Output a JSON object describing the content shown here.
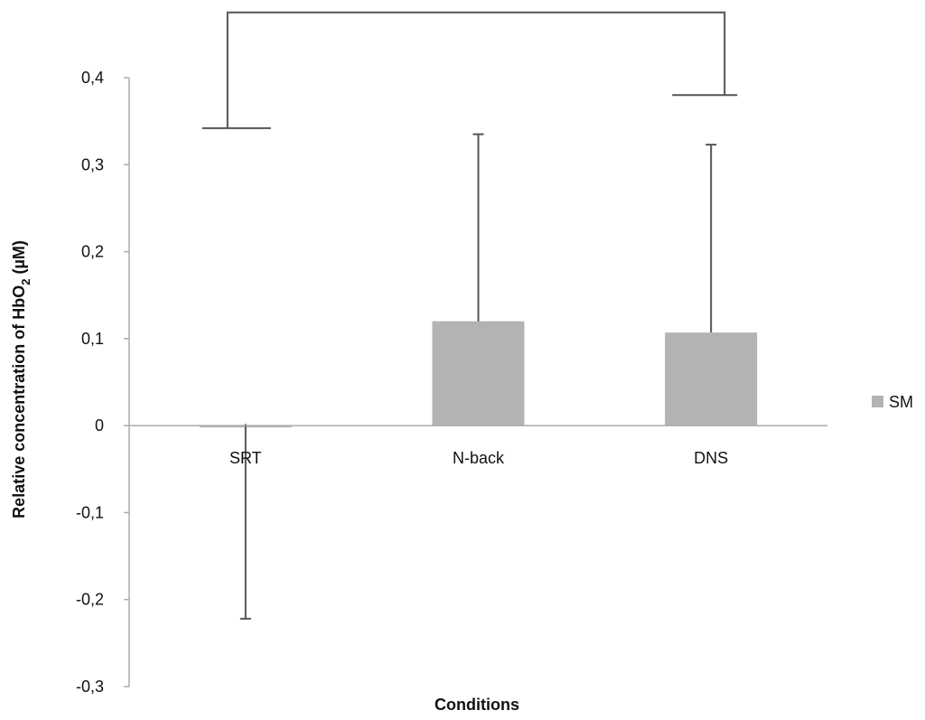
{
  "chart_data": {
    "type": "bar",
    "title": "",
    "xlabel": "Conditions",
    "ylabel": "Relative concentration of HbO₂ (µM)",
    "ylabel_parts": {
      "before": "Relative concentration of HbO",
      "sub": "2",
      "after": " (µM)"
    },
    "categories": [
      "SRT",
      "N-back",
      "DNS"
    ],
    "series": [
      {
        "name": "SM",
        "color": "#b3b3b3",
        "values": [
          -0.002,
          0.12,
          0.107
        ],
        "error_upper": [
          0.002,
          0.335,
          0.323
        ],
        "error_lower": [
          -0.222,
          0.12,
          0.107
        ]
      }
    ],
    "ylim": [
      -0.3,
      0.4
    ],
    "yticks": [
      0.4,
      0.3,
      0.2,
      0.1,
      0,
      -0.1,
      -0.2,
      -0.3
    ],
    "ytick_labels": [
      "0,4",
      "0,3",
      "0,2",
      "0,1",
      "0",
      "-0,1",
      "-0,2",
      "-0,3"
    ],
    "significance_bracket": {
      "from": "SRT",
      "to": "DNS",
      "left_level": 0.342,
      "right_level": 0.38,
      "top_level": 0.475
    },
    "legend": {
      "position": "right",
      "entries": [
        "SM"
      ]
    },
    "grid": false
  }
}
